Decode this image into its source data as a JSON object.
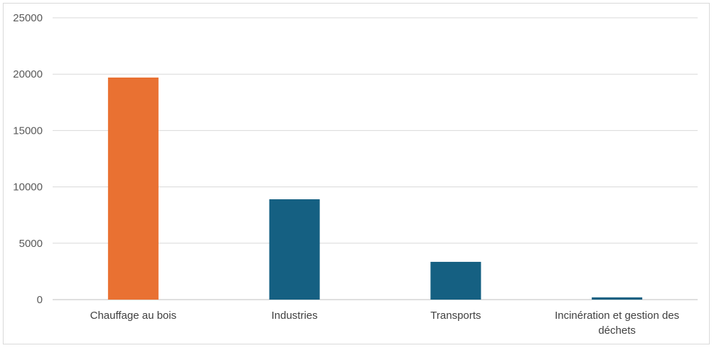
{
  "chart_data": {
    "type": "bar",
    "title": "",
    "xlabel": "",
    "ylabel": "",
    "categories": [
      "Chauffage au bois",
      "Industries",
      "Transports",
      "Incinération et gestion des déchets"
    ],
    "category_lines": [
      [
        "Chauffage au bois"
      ],
      [
        "Industries"
      ],
      [
        "Transports"
      ],
      [
        "Incinération et gestion des",
        "déchets"
      ]
    ],
    "values": [
      19700,
      8900,
      3350,
      200
    ],
    "colors": [
      "#E97132",
      "#156082",
      "#156082",
      "#156082"
    ],
    "ylim": [
      0,
      25000
    ],
    "yticks": [
      0,
      5000,
      10000,
      15000,
      20000,
      25000
    ],
    "grid": true,
    "legend": "none"
  }
}
